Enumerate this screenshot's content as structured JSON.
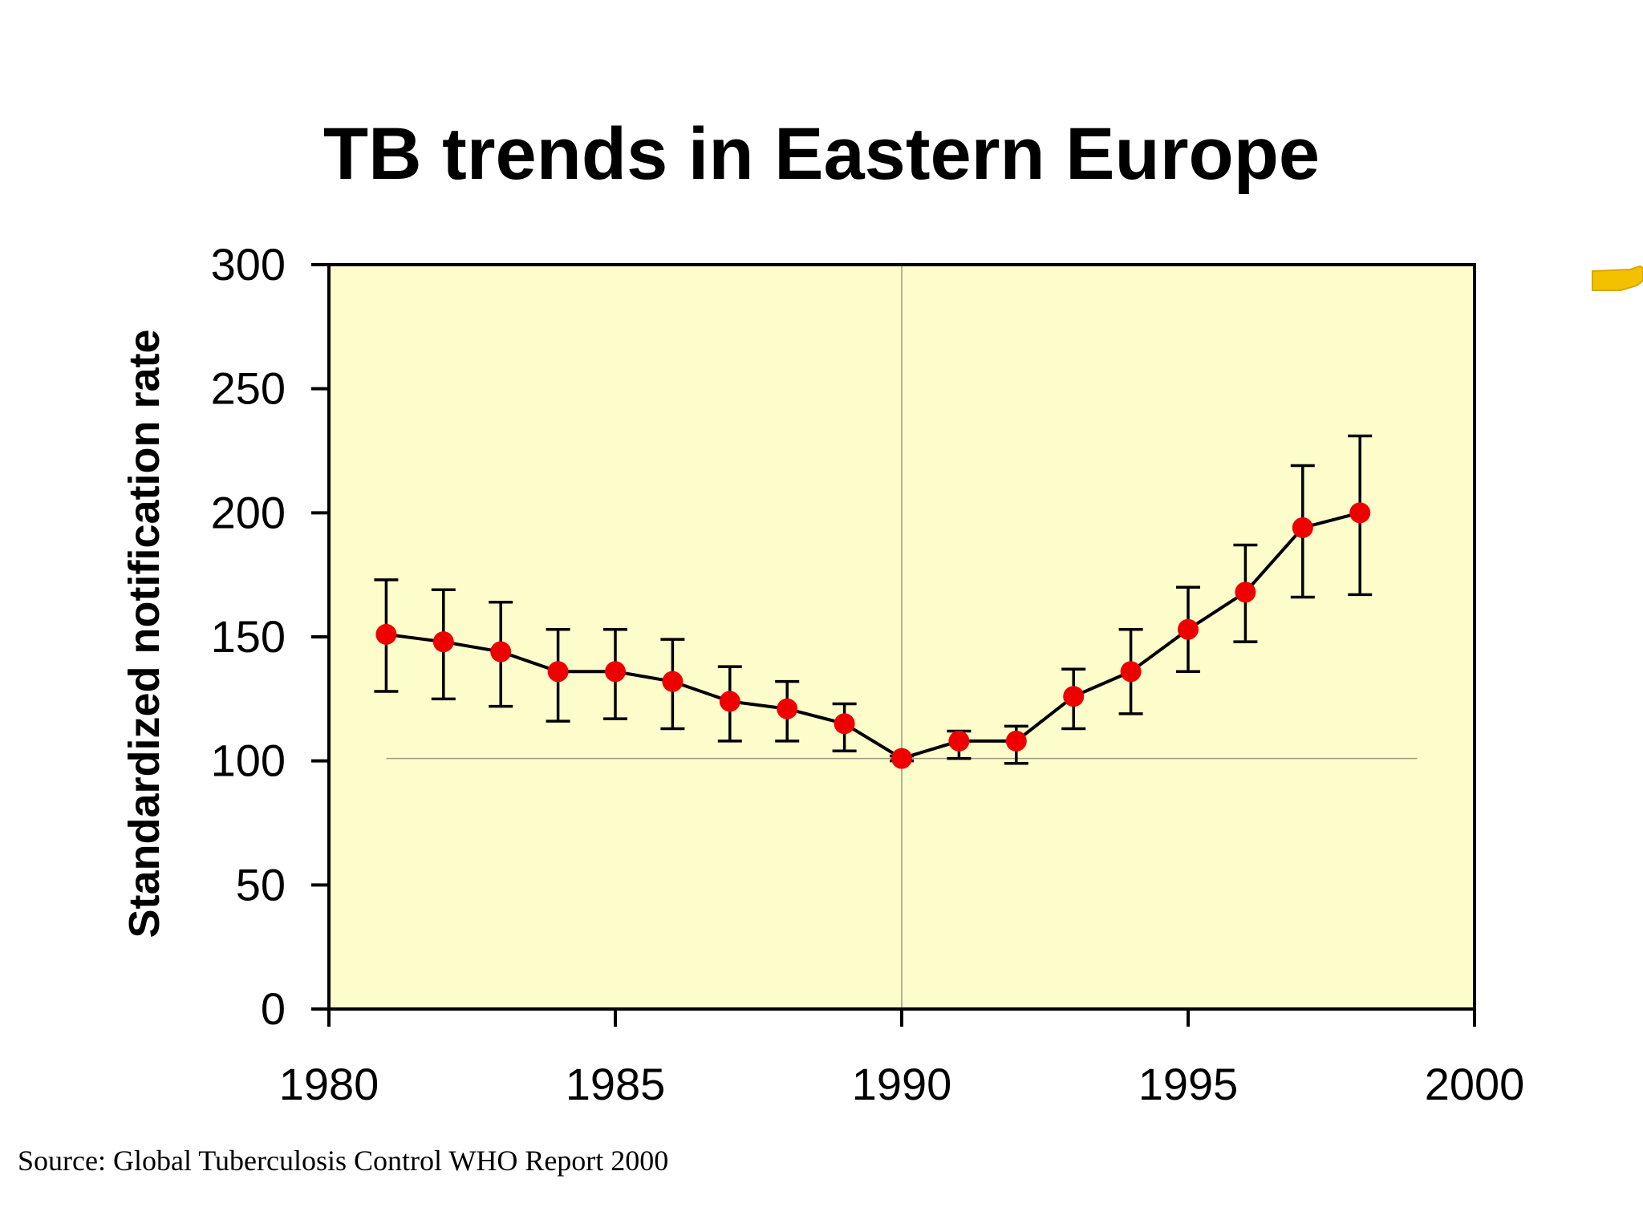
{
  "slide": {
    "title": "TB trends in Eastern Europe",
    "source": "Source: Global Tuberculosis Control WHO Report 2000"
  },
  "colors": {
    "plot_background": "#fdfdcc",
    "marker": "#ee0000",
    "line": "#000000",
    "pointer_icon": "#f2c200"
  },
  "chart_data": {
    "type": "line",
    "title": "TB trends in Eastern Europe",
    "xlabel": "",
    "ylabel": "Standardized notification rate",
    "xlim": [
      1980,
      2000
    ],
    "ylim": [
      0,
      300
    ],
    "xticks": [
      1980,
      1985,
      1990,
      1995,
      2000
    ],
    "yticks": [
      0,
      50,
      100,
      150,
      200,
      250,
      300
    ],
    "grid": false,
    "reference_lines": {
      "vertical_x": 1990,
      "horizontal_y": 101
    },
    "series": [
      {
        "x": [
          1981,
          1982,
          1983,
          1984,
          1985,
          1986,
          1987,
          1988,
          1989,
          1990,
          1991,
          1992,
          1993,
          1994,
          1995,
          1996,
          1997,
          1998
        ],
        "y": [
          151,
          148,
          144,
          136,
          136,
          132,
          124,
          121,
          115,
          101,
          108,
          108,
          126,
          136,
          153,
          168,
          194,
          200
        ],
        "error_low": [
          128,
          125,
          122,
          116,
          117,
          113,
          108,
          108,
          104,
          100,
          101,
          99,
          113,
          119,
          136,
          148,
          166,
          167
        ],
        "error_high": [
          173,
          169,
          164,
          153,
          153,
          149,
          138,
          132,
          123,
          102,
          112,
          114,
          137,
          153,
          170,
          187,
          219,
          231
        ]
      }
    ]
  }
}
